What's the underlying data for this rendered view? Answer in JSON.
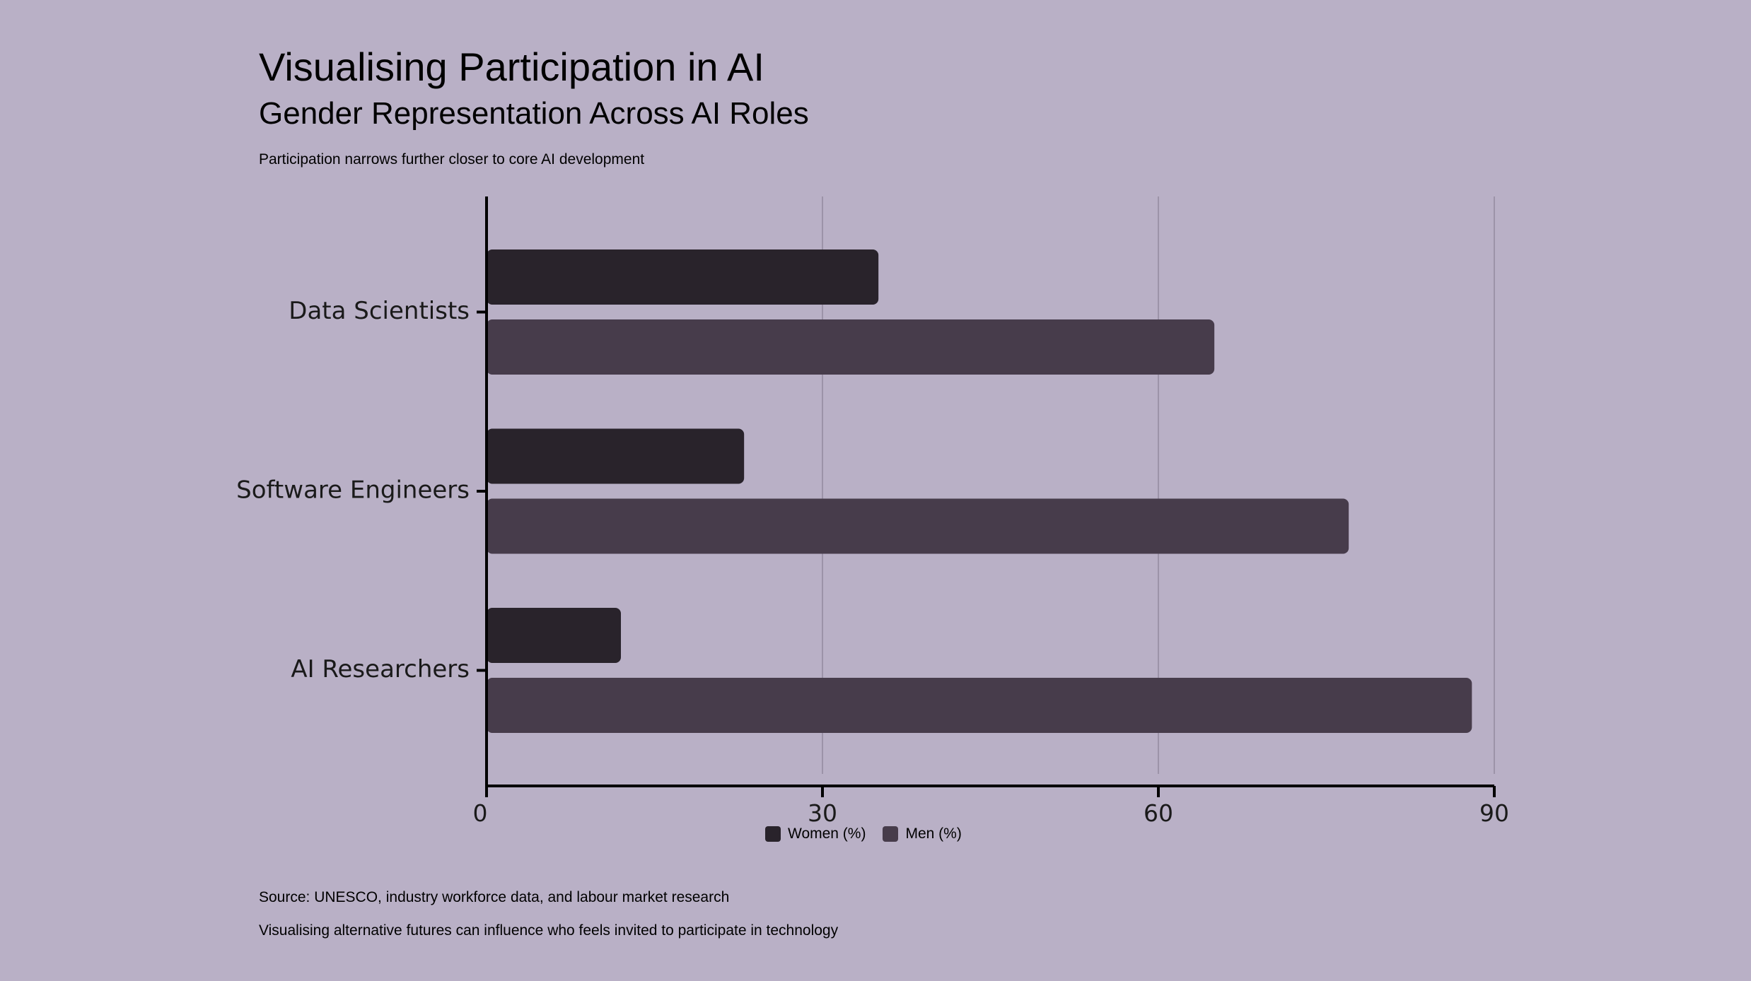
{
  "header": {
    "title": "Visualising Participation in AI",
    "subtitle": "Gender Representation Across AI Roles",
    "caption": "Participation narrows further closer to core AI development"
  },
  "footer": {
    "source": "Source: UNESCO, industry workforce data, and labour market research",
    "note": "Visualising alternative futures can influence who feels invited to participate in technology"
  },
  "colors": {
    "background": "#b9b0c6",
    "women": "#29232b",
    "men": "#473c4b",
    "grid": "#9c93a8",
    "axis": "#000000"
  },
  "chart_data": {
    "type": "bar",
    "orientation": "horizontal",
    "categories": [
      "Data Scientists",
      "Software Engineers",
      "AI Researchers"
    ],
    "series": [
      {
        "name": "Women (%)",
        "values": [
          35,
          23,
          12
        ]
      },
      {
        "name": "Men (%)",
        "values": [
          65,
          77,
          88
        ]
      }
    ],
    "xlim": [
      0,
      90
    ],
    "xticks": [
      "0",
      "30",
      "60",
      "90"
    ],
    "xtick_values": [
      0,
      30,
      60,
      90
    ],
    "grid": true,
    "legend": "bottom-center"
  }
}
